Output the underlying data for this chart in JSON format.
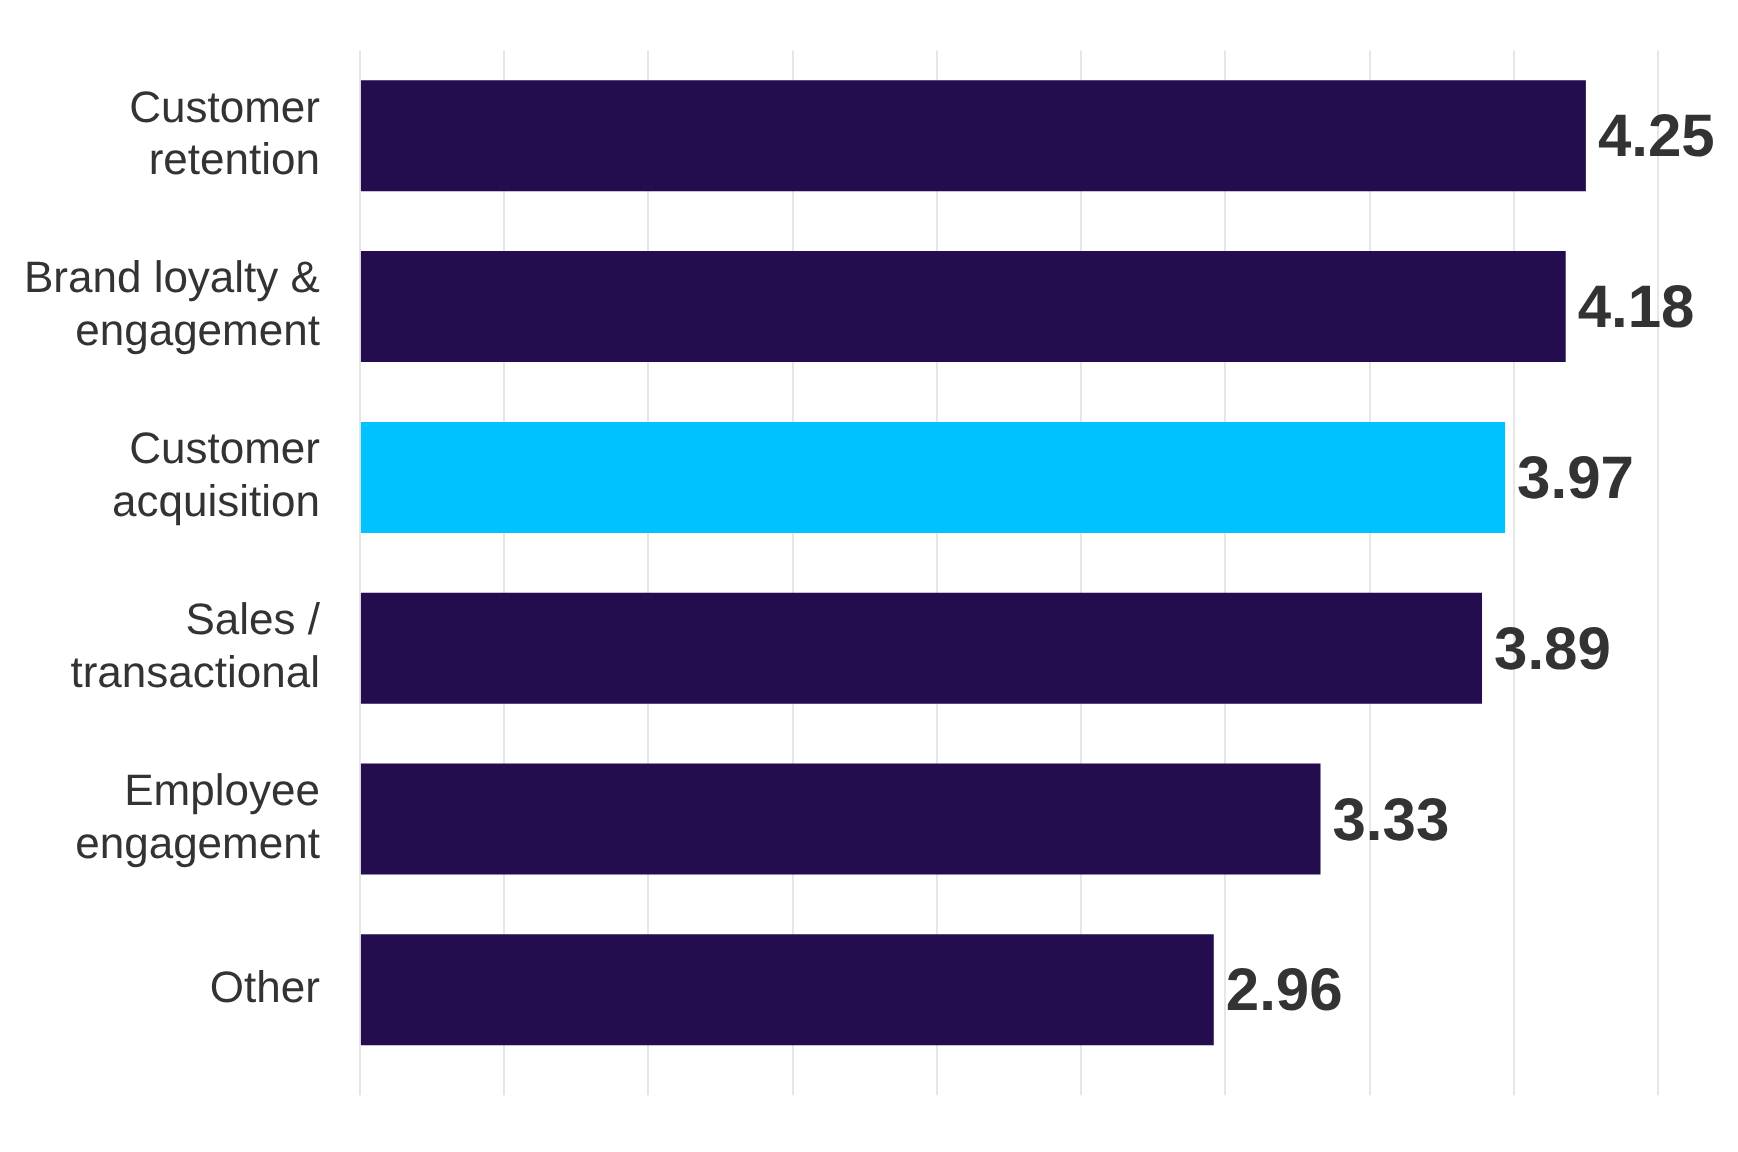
{
  "chart_data": {
    "type": "bar",
    "orientation": "horizontal",
    "categories": [
      "Customer retention",
      "Brand loyalty & engagement",
      "Customer acquisition",
      "Sales / transactional",
      "Employee engagement",
      "Other"
    ],
    "values": [
      4.25,
      4.18,
      3.97,
      3.89,
      3.33,
      2.96
    ],
    "colors": [
      "#230d4f",
      "#230d4f",
      "#00c2ff",
      "#230d4f",
      "#230d4f",
      "#230d4f"
    ],
    "xlim": [
      0,
      4.5
    ],
    "xticks": [
      {
        "value": 0,
        "label": null
      },
      {
        "value": 0.5,
        "label": null
      },
      {
        "value": 1,
        "label": null
      },
      {
        "value": 1.5,
        "label": null
      },
      {
        "value": 2,
        "label": null
      },
      {
        "value": 2.5,
        "label": null
      },
      {
        "value": 3,
        "label": null
      },
      {
        "value": 3.5,
        "label": null
      },
      {
        "value": 4,
        "label": null
      },
      {
        "value": 4.5,
        "label": null
      }
    ],
    "grid": "x",
    "tick_labels": "y",
    "data_labels": true
  }
}
